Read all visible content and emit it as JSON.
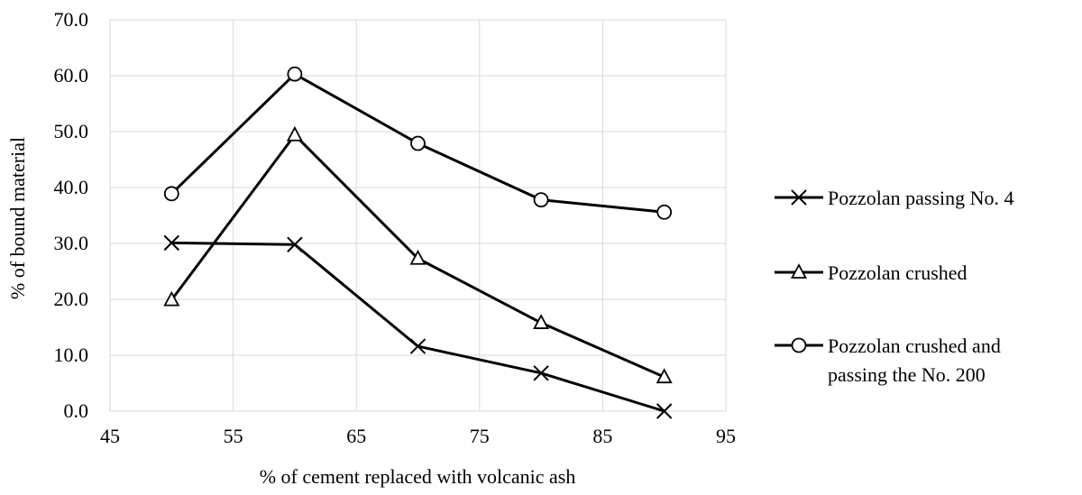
{
  "chart_data": {
    "type": "line",
    "title": "",
    "xlabel": "% of cement replaced with volcanic ash",
    "ylabel": "% of bound material",
    "xlim": [
      45,
      95
    ],
    "ylim": [
      0,
      70
    ],
    "x_ticks": [
      "45",
      "55",
      "65",
      "75",
      "85",
      "95"
    ],
    "y_ticks": [
      "0.0",
      "10.0",
      "20.0",
      "30.0",
      "40.0",
      "50.0",
      "60.0",
      "70.0"
    ],
    "grid": true,
    "legend_position": "right",
    "series": [
      {
        "name": "Pozzolan passing No. 4",
        "marker": "x",
        "legend_lines": [
          "Pozzolan passing No. 4"
        ],
        "x": [
          50,
          60,
          70,
          80,
          90
        ],
        "values": [
          30.1,
          29.8,
          11.6,
          6.8,
          0.0
        ]
      },
      {
        "name": "Pozzolan crushed",
        "marker": "triangle",
        "legend_lines": [
          "Pozzolan crushed"
        ],
        "x": [
          50,
          60,
          70,
          80,
          90
        ],
        "values": [
          19.9,
          49.4,
          27.3,
          15.8,
          6.1
        ]
      },
      {
        "name": "Pozzolan crushed and passing the No. 200",
        "marker": "circle",
        "legend_lines": [
          "Pozzolan crushed and",
          "passing the No. 200"
        ],
        "x": [
          50,
          60,
          70,
          80,
          90
        ],
        "values": [
          38.9,
          60.3,
          47.9,
          37.8,
          35.6
        ]
      }
    ]
  }
}
